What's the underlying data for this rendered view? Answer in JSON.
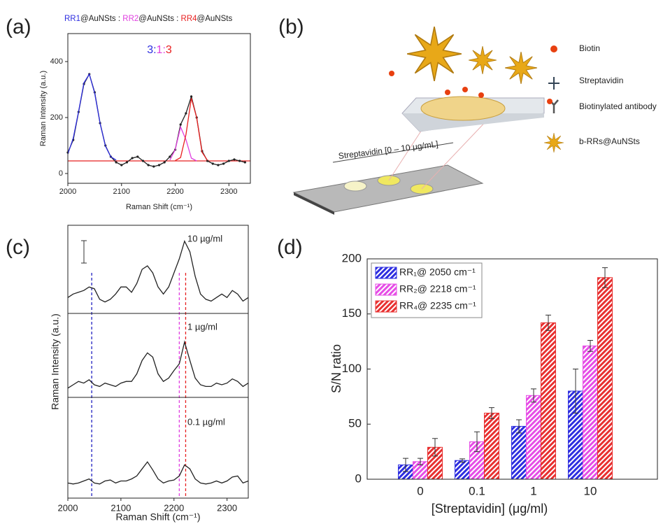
{
  "chart_data": [
    {
      "type": "line",
      "label": "(a)",
      "title": [
        {
          "text": "RR1",
          "color": "#2e2ee0"
        },
        {
          "text": "@AuNSts : ",
          "color": "#222222"
        },
        {
          "text": "RR2",
          "color": "#e040e0"
        },
        {
          "text": "@AuNSts : ",
          "color": "#222222"
        },
        {
          "text": "RR4",
          "color": "#e82020"
        },
        {
          "text": "@AuNSts",
          "color": "#222222"
        }
      ],
      "annotation": [
        {
          "text": "3",
          "color": "#2e2ee0"
        },
        {
          "text": ":",
          "color": "#2e2ee0"
        },
        {
          "text": "1",
          "color": "#e040e0"
        },
        {
          "text": ":",
          "color": "#e040e0"
        },
        {
          "text": "3",
          "color": "#e82020"
        }
      ],
      "x_label": "Raman Shift (cm⁻¹)",
      "y_label": "Raman Intensity (a.u.)",
      "x": [
        2000,
        2010,
        2020,
        2030,
        2040,
        2050,
        2060,
        2070,
        2080,
        2090,
        2100,
        2110,
        2120,
        2130,
        2140,
        2150,
        2160,
        2170,
        2180,
        2190,
        2200,
        2210,
        2220,
        2230,
        2240,
        2250,
        2260,
        2270,
        2280,
        2290,
        2300,
        2310,
        2320,
        2330
      ],
      "xlim": [
        2000,
        2340
      ],
      "xticks": [
        2000,
        2100,
        2200,
        2300
      ],
      "ylim": [
        -35,
        500
      ],
      "yticks": [
        0,
        200,
        400
      ],
      "baseline": {
        "value": 45,
        "color": "#e82020"
      },
      "series": [
        {
          "color": "#222222",
          "style": "line+dots",
          "values": [
            75,
            120,
            220,
            320,
            355,
            290,
            180,
            100,
            60,
            40,
            30,
            40,
            55,
            60,
            45,
            30,
            25,
            30,
            40,
            60,
            85,
            175,
            215,
            275,
            200,
            80,
            45,
            35,
            30,
            35,
            45,
            50,
            45,
            40
          ]
        },
        {
          "color": "#2e2ee0",
          "style": "line",
          "values": [
            70,
            126,
            222,
            324,
            355,
            287,
            179,
            98,
            60,
            48,
            null,
            null,
            null,
            null,
            null,
            null,
            null,
            null,
            null,
            null,
            null,
            null,
            null,
            null,
            null,
            null,
            null,
            null,
            null,
            null,
            null,
            null,
            null,
            null
          ]
        },
        {
          "color": "#e040e0",
          "style": "line",
          "values": [
            null,
            null,
            null,
            null,
            null,
            null,
            null,
            null,
            null,
            null,
            null,
            null,
            null,
            null,
            null,
            null,
            null,
            null,
            null,
            48,
            85,
            166,
            121,
            55,
            45,
            null,
            null,
            null,
            null,
            null,
            null,
            null,
            null,
            null
          ]
        },
        {
          "color": "#e82020",
          "style": "line",
          "values": [
            null,
            null,
            null,
            null,
            null,
            null,
            null,
            null,
            null,
            null,
            null,
            null,
            null,
            null,
            null,
            null,
            null,
            null,
            null,
            null,
            46,
            57,
            139,
            269,
            200,
            76,
            47,
            null,
            null,
            null,
            null,
            null,
            null,
            null
          ]
        }
      ]
    },
    {
      "type": "stacked-spectra",
      "label": "(c)",
      "x_label": "Raman Shift (cm⁻¹)",
      "y_label": "Raman Intensity (a.u.)",
      "color": "#222222",
      "x": [
        2000,
        2010,
        2020,
        2030,
        2040,
        2050,
        2060,
        2070,
        2080,
        2090,
        2100,
        2110,
        2120,
        2130,
        2140,
        2150,
        2160,
        2170,
        2180,
        2190,
        2200,
        2210,
        2220,
        2230,
        2240,
        2250,
        2260,
        2270,
        2280,
        2290,
        2300,
        2310,
        2320,
        2330,
        2340
      ],
      "xlim": [
        2000,
        2340
      ],
      "xticks": [
        2000,
        2100,
        2200,
        2300
      ],
      "ylim": [
        0,
        100
      ],
      "markers": [
        {
          "x": 2045,
          "color": "#2020c0"
        },
        {
          "x": 2210,
          "color": "#e040e0"
        },
        {
          "x": 2222,
          "color": "#e82020"
        }
      ],
      "panels": [
        {
          "label": "10 µg/ml",
          "values": [
            18,
            22,
            24,
            26,
            30,
            28,
            16,
            13,
            16,
            22,
            30,
            30,
            24,
            34,
            50,
            54,
            46,
            30,
            22,
            30,
            46,
            62,
            82,
            70,
            42,
            22,
            16,
            14,
            18,
            22,
            18,
            26,
            22,
            14,
            18
          ]
        },
        {
          "label": "1 µg/ml",
          "values": [
            11,
            15,
            19,
            17,
            21,
            15,
            13,
            17,
            15,
            13,
            17,
            19,
            19,
            28,
            44,
            53,
            48,
            28,
            19,
            23,
            32,
            40,
            66,
            44,
            23,
            15,
            13,
            13,
            17,
            15,
            17,
            22,
            19,
            13,
            17
          ]
        },
        {
          "label": "0.1 µg/ml",
          "values": [
            15,
            14,
            15,
            17,
            19,
            15,
            14,
            17,
            18,
            15,
            17,
            17,
            19,
            22,
            29,
            36,
            28,
            19,
            15,
            17,
            18,
            22,
            33,
            29,
            19,
            15,
            14,
            15,
            17,
            15,
            17,
            21,
            22,
            15,
            17
          ]
        }
      ]
    },
    {
      "type": "bar",
      "label": "(d)",
      "x_label": "[Streptavidin] (μg/ml)",
      "y_label": "S/N ratio",
      "categories": [
        "0",
        "0.1",
        "1",
        "10"
      ],
      "ylim": [
        0,
        200
      ],
      "yticks": [
        0,
        50,
        100,
        150,
        200
      ],
      "legend": "upper left",
      "hatch": true,
      "series": [
        {
          "name": "RR₁@ 2050 cm⁻¹",
          "color": "#2e2ee0",
          "values": [
            13,
            17,
            48,
            80
          ],
          "errors": [
            6,
            1.5,
            6,
            20
          ]
        },
        {
          "name": "RR₂@ 2218 cm⁻¹",
          "color": "#e64de6",
          "values": [
            16,
            34,
            76,
            121
          ],
          "errors": [
            3,
            9,
            6,
            5
          ]
        },
        {
          "name": "RR₄@ 2235 cm⁻¹",
          "color": "#e83030",
          "values": [
            29,
            60,
            142,
            183
          ],
          "errors": [
            8,
            5,
            7,
            9
          ]
        }
      ]
    }
  ],
  "diagram": {
    "label": "(b)",
    "legend": [
      "Biotin",
      "Streptavidin",
      "Biotinylated antibody",
      "b-RRs@AuNSts"
    ],
    "slide_label": "Streptavidin [0 – 10 μg/mL]"
  }
}
